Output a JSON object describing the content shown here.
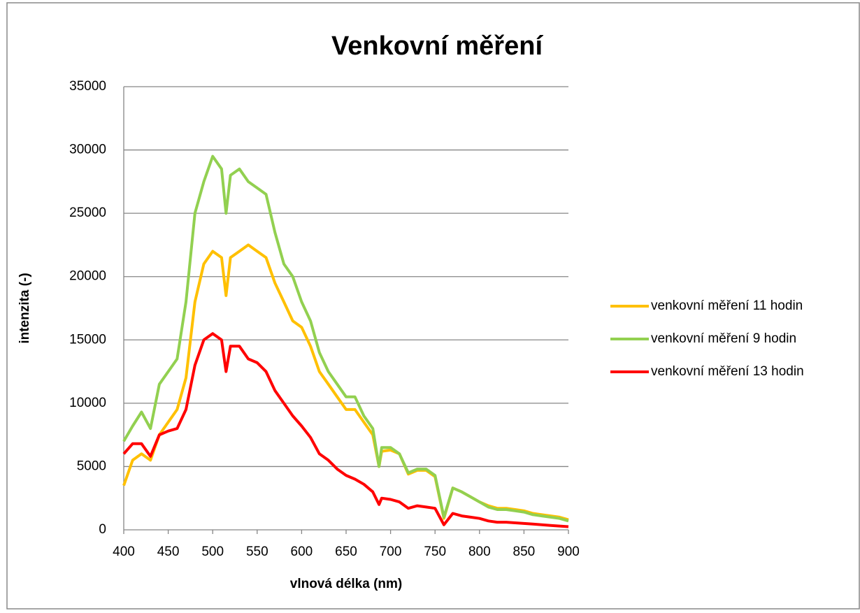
{
  "chart_data": {
    "type": "line",
    "title": "Venkovní měření",
    "x_label": "vlnová délka (nm)",
    "y_label": "intenzita (-)",
    "x": [
      400,
      410,
      420,
      430,
      440,
      450,
      460,
      470,
      480,
      490,
      500,
      510,
      515,
      520,
      530,
      540,
      550,
      560,
      570,
      580,
      590,
      600,
      610,
      620,
      630,
      640,
      650,
      660,
      670,
      680,
      687,
      690,
      700,
      710,
      720,
      730,
      740,
      750,
      760,
      770,
      780,
      790,
      800,
      810,
      820,
      830,
      840,
      850,
      860,
      870,
      880,
      890,
      900
    ],
    "series": [
      {
        "name": "venkovní měření 11 hodin",
        "color": "#FFC000",
        "values": [
          3500,
          5500,
          6000,
          5500,
          7500,
          8500,
          9500,
          12000,
          18000,
          21000,
          22000,
          21500,
          18500,
          21500,
          22000,
          22500,
          22000,
          21500,
          19500,
          18000,
          16500,
          16000,
          14500,
          12500,
          11500,
          10500,
          9500,
          9500,
          8500,
          7500,
          5000,
          6200,
          6300,
          6000,
          4400,
          4700,
          4700,
          4200,
          900,
          3300,
          3000,
          2600,
          2200,
          1900,
          1700,
          1700,
          1600,
          1500,
          1300,
          1200,
          1100,
          1000,
          800
        ]
      },
      {
        "name": "venkovní měření 9 hodin",
        "color": "#92D050",
        "values": [
          7000,
          8200,
          9300,
          8000,
          11500,
          12500,
          13500,
          18000,
          25000,
          27500,
          29500,
          28500,
          25000,
          28000,
          28500,
          27500,
          27000,
          26500,
          23500,
          21000,
          20000,
          18000,
          16500,
          14000,
          12500,
          11500,
          10500,
          10500,
          9000,
          8000,
          5000,
          6500,
          6500,
          6000,
          4500,
          4800,
          4800,
          4300,
          1000,
          3300,
          3000,
          2600,
          2200,
          1800,
          1600,
          1600,
          1500,
          1400,
          1200,
          1100,
          1000,
          900,
          700
        ]
      },
      {
        "name": "venkovní měření 13 hodin",
        "color": "#FF0000",
        "values": [
          6000,
          6800,
          6800,
          5800,
          7500,
          7800,
          8000,
          9500,
          13000,
          15000,
          15500,
          15000,
          12500,
          14500,
          14500,
          13500,
          13200,
          12500,
          11000,
          10000,
          9000,
          8200,
          7300,
          6000,
          5500,
          4800,
          4300,
          4000,
          3600,
          3000,
          2000,
          2500,
          2400,
          2200,
          1700,
          1900,
          1800,
          1700,
          400,
          1300,
          1100,
          1000,
          900,
          700,
          600,
          600,
          550,
          500,
          450,
          400,
          350,
          300,
          250
        ]
      }
    ],
    "xlim": [
      400,
      900
    ],
    "xticks": [
      400,
      450,
      500,
      550,
      600,
      650,
      700,
      750,
      800,
      850,
      900
    ],
    "ylim": [
      0,
      35000
    ],
    "yticks": [
      0,
      5000,
      10000,
      15000,
      20000,
      25000,
      30000,
      35000
    ],
    "grid": true,
    "legend": "right"
  }
}
